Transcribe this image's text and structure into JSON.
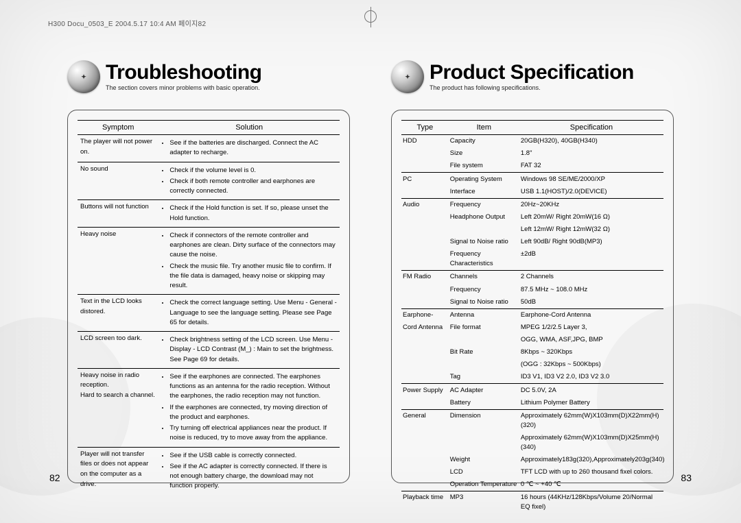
{
  "meta": {
    "crop_header": "H300 Docu_0503_E  2004.5.17 10:4 AM  페이지82"
  },
  "left": {
    "title": "Troubleshooting",
    "subtitle": "The section covers minor problems with basic operation.",
    "headers": {
      "col1": "Symptom",
      "col2": "Solution"
    },
    "rows": [
      {
        "sep": true,
        "symptom": "The player will not power on.",
        "bullets": [
          "See if the batteries are discharged. Connect the AC adapter to recharge."
        ]
      },
      {
        "sep": true,
        "symptom": "No sound",
        "bullets": [
          "Check if the volume level is 0.",
          "Check if both remote controller and earphones are correctly connected."
        ]
      },
      {
        "sep": true,
        "symptom": "Buttons will not function",
        "bullets": [
          "Check if the Hold function is set. If so, please unset the Hold function."
        ]
      },
      {
        "sep": true,
        "symptom": "Heavy noise",
        "bullets": [
          "Check if connectors of the remote controller and earphones are clean. Dirty surface of the connectors may cause the noise.",
          "Check the music file. Try another music file to confirm. If the file data is damaged, heavy noise or skipping may result."
        ]
      },
      {
        "sep": true,
        "symptom": "Text in the LCD looks distored.",
        "bullets": [
          "Check the correct language setting. Use Menu - General - Language to see the language setting. Please see Page 65 for details."
        ]
      },
      {
        "sep": true,
        "symptom": "LCD screen too dark.",
        "bullets": [
          "Check brightness setting of the LCD screen. Use Menu - Display - LCD Contrast (M_) : Main to set the brightness. See Page 69 for details."
        ]
      },
      {
        "sep": true,
        "symptom": "Heavy noise in radio reception.\nHard to search a channel.",
        "bullets": [
          "See if the earphones are connected. The earphones functions as an antenna for the radio reception. Without the earphones, the radio reception may not function.",
          "If the earphones are connected, try moving direction of the product and earphones.",
          "Try turning off electrical appliances near the product. If noise is reduced, try to move away from the appliance."
        ]
      },
      {
        "sep": true,
        "symptom": "Player will not transfer files or does not appear on the computer as a drive.",
        "bullets": [
          "See if the USB cable is correctly connected.",
          "See if the AC adapter is correctly connected. If there is not enough battery charge, the download may not function properly."
        ]
      }
    ],
    "page_number": "82"
  },
  "right": {
    "title": "Product Specification",
    "subtitle": "The product has following specifications.",
    "headers": {
      "col1": "Type",
      "col2": "Item",
      "col3": "Specification"
    },
    "rows": [
      {
        "sep": true,
        "type": "HDD",
        "item": "Capacity",
        "spec": "20GB(H320), 40GB(H340)"
      },
      {
        "sep": false,
        "type": "",
        "item": "Size",
        "spec": "1.8\""
      },
      {
        "sep": false,
        "type": "",
        "item": "File system",
        "spec": "FAT 32"
      },
      {
        "sep": true,
        "type": "PC",
        "item": "Operating System",
        "spec": "Windows 98 SE/ME/2000/XP"
      },
      {
        "sep": false,
        "type": "",
        "item": "Interface",
        "spec": "USB 1.1(HOST)/2.0(DEVICE)"
      },
      {
        "sep": true,
        "type": "Audio",
        "item": "Frequency",
        "spec": "20Hz~20KHz"
      },
      {
        "sep": false,
        "type": "",
        "item": "Headphone Output",
        "spec": "Left 20mW/ Right 20mW(16 Ω)"
      },
      {
        "sep": false,
        "type": "",
        "item": "",
        "spec": "Left 12mW/ Right 12mW(32 Ω)"
      },
      {
        "sep": false,
        "type": "",
        "item": "Signal to Noise ratio",
        "spec": "Left 90dB/ Right 90dB(MP3)"
      },
      {
        "sep": false,
        "type": "",
        "item": "Frequency Characteristics",
        "spec": "±2dB"
      },
      {
        "sep": true,
        "type": "FM Radio",
        "item": "Channels",
        "spec": "2 Channels"
      },
      {
        "sep": false,
        "type": "",
        "item": "Frequency",
        "spec": "87.5 MHz ~ 108.0 MHz"
      },
      {
        "sep": false,
        "type": "",
        "item": "Signal to Noise ratio",
        "spec": "50dB"
      },
      {
        "sep": true,
        "type": "Earphone-",
        "item": "Antenna",
        "spec": "Earphone-Cord Antenna"
      },
      {
        "sep": false,
        "type": "Cord Antenna",
        "item": "File format",
        "spec": "MPEG 1/2/2.5 Layer 3,"
      },
      {
        "sep": false,
        "type": "",
        "item": "",
        "spec": "OGG, WMA, ASF,JPG, BMP"
      },
      {
        "sep": false,
        "type": "",
        "item": "Bit Rate",
        "spec": "8Kbps ~ 320Kbps"
      },
      {
        "sep": false,
        "type": "",
        "item": "",
        "spec": "(OGG : 32Kbps ~ 500Kbps)"
      },
      {
        "sep": false,
        "type": "",
        "item": "Tag",
        "spec": "ID3 V1, ID3 V2 2.0, ID3 V2 3.0"
      },
      {
        "sep": true,
        "type": "Power Supply",
        "item": "AC Adapter",
        "spec": "DC 5.0V, 2A"
      },
      {
        "sep": false,
        "type": "",
        "item": "Battery",
        "spec": "Lithium Polymer Battery"
      },
      {
        "sep": true,
        "type": "General",
        "item": "Dimension",
        "spec": "Approximately 62mm(W)X103mm(D)X22mm(H)(320)"
      },
      {
        "sep": false,
        "type": "",
        "item": "",
        "spec": "Approximately 62mm(W)X103mm(D)X25mm(H)(340)"
      },
      {
        "sep": false,
        "type": "",
        "item": "Weight",
        "spec": "Approximately183g(320),Approximately203g(340)"
      },
      {
        "sep": false,
        "type": "",
        "item": "LCD",
        "spec": "TFT LCD with up to 260 thousand fixel colors."
      },
      {
        "sep": false,
        "type": "",
        "item": "Operation Temperature",
        "spec": "0 ℃ ~ +40 ℃"
      },
      {
        "sep": true,
        "type": "Playback time",
        "item": "MP3",
        "spec": "16 hours (44KHz/128Kbps/Volume 20/Normal EQ fixel)"
      }
    ],
    "page_number": "83"
  }
}
